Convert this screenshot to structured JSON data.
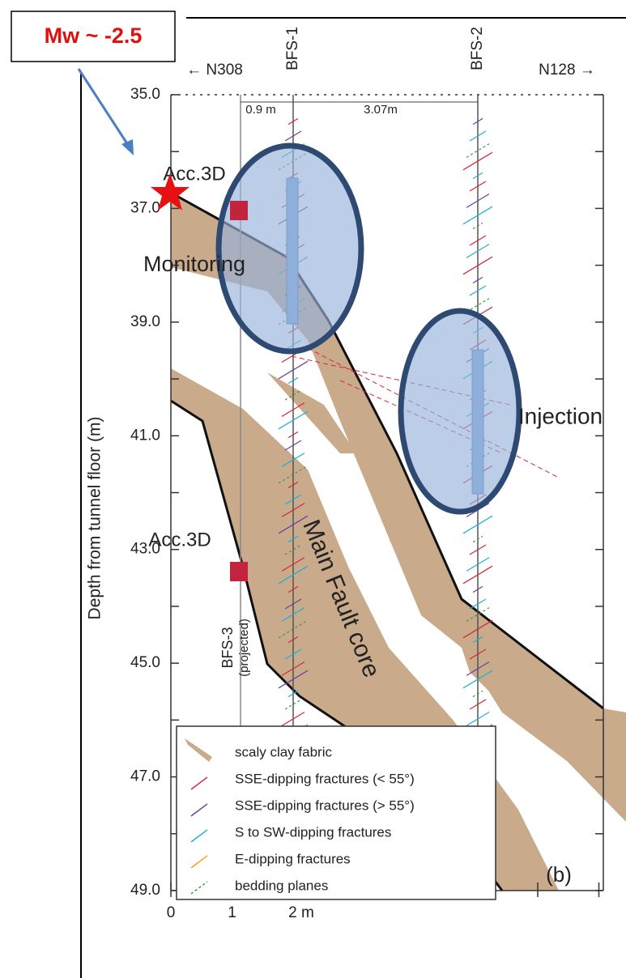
{
  "callout": {
    "label": "Mw ~ -2.5"
  },
  "header": {
    "left": "← N308",
    "right": "N128 →",
    "boreholes": [
      "BFS-1",
      "BFS-2"
    ],
    "distances": [
      "0.9 m",
      "3.07m"
    ]
  },
  "y_axis": {
    "title": "Depth from tunnel floor (m)",
    "ticks": [
      "35.0",
      "37.0",
      "39.0",
      "41.0",
      "43.0",
      "45.0",
      "47.0",
      "49.0"
    ]
  },
  "x_axis": {
    "ticks": [
      "0",
      "1",
      "2 m"
    ]
  },
  "labels": {
    "acc_top": "Acc.3D",
    "monitoring": "Monitoring",
    "injection": "Injection",
    "acc_bottom": "Acc.3D",
    "bfs3": "BFS-3",
    "bfs3_note": "(projected)",
    "fault": "Main Fault core",
    "panel": "(b)"
  },
  "legend": [
    "scaly clay fabric",
    "SSE-dipping fractures (< 55°)",
    "SSE-dipping fractures (> 55°)",
    "S to SW-dipping fractures",
    "E-dipping fractures",
    "bedding planes"
  ]
}
